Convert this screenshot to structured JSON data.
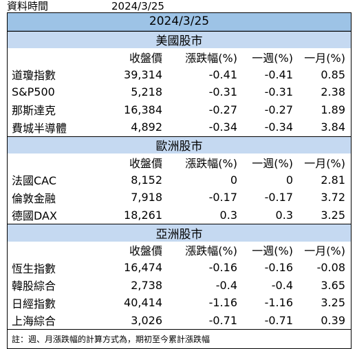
{
  "meta": {
    "label": "資料時間",
    "date": "2024/3/25"
  },
  "title": "2024/3/25",
  "columns": [
    "",
    "收盤價",
    "漲跌幅(%)",
    "一週(%)",
    "一月(%)"
  ],
  "regions": [
    {
      "name": "美國股市",
      "rows": [
        [
          "道瓊指數",
          "39,314",
          "-0.41",
          "-0.41",
          "0.85"
        ],
        [
          "S&P500",
          "5,218",
          "-0.31",
          "-0.31",
          "2.38"
        ],
        [
          "那斯達克",
          "16,384",
          "-0.27",
          "-0.27",
          "1.89"
        ],
        [
          "費城半導體",
          "4,892",
          "-0.34",
          "-0.34",
          "3.84"
        ]
      ]
    },
    {
      "name": "歐洲股市",
      "rows": [
        [
          "法國CAC",
          "8,152",
          "0",
          "0",
          "2.81"
        ],
        [
          "倫敦金融",
          "7,918",
          "-0.17",
          "-0.17",
          "3.72"
        ],
        [
          "德國DAX",
          "18,261",
          "0.3",
          "0.3",
          "3.25"
        ]
      ]
    },
    {
      "name": "亞洲股市",
      "rows": [
        [
          "恆生指數",
          "16,474",
          "-0.16",
          "-0.16",
          "-0.08"
        ],
        [
          "韓股綜合",
          "2,738",
          "-0.4",
          "-0.4",
          "3.65"
        ],
        [
          "日經指數",
          "40,414",
          "-1.16",
          "-1.16",
          "3.25"
        ],
        [
          "上海綜合",
          "3,026",
          "-0.71",
          "-0.71",
          "0.39"
        ]
      ]
    }
  ],
  "note": "註：週、月漲跌幅的計算方式為，期初至今累計漲跌幅"
}
